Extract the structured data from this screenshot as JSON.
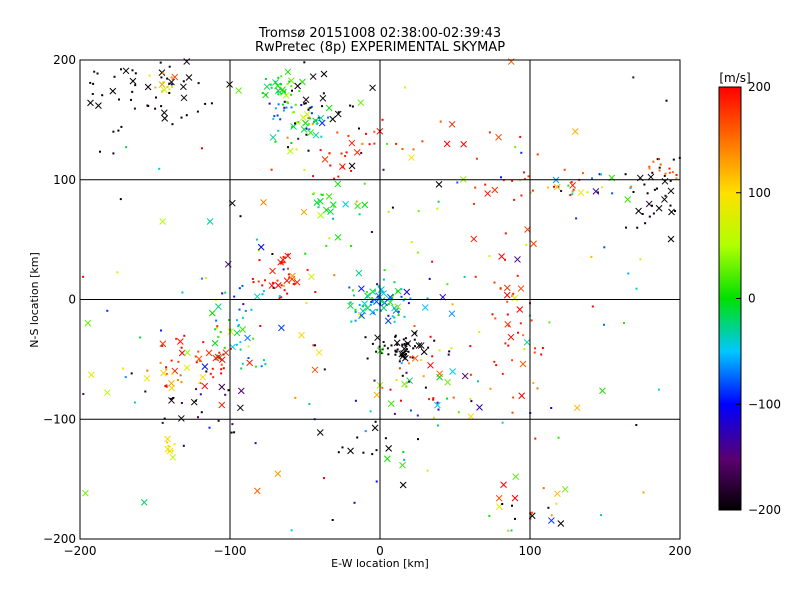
{
  "chart_data": {
    "type": "scatter",
    "title": "Tromsø 20151008 02:38:00-02:39:43",
    "subtitle": "RwPretec (8p) EXPERIMENTAL SKYMAP",
    "xlabel": "E-W location [km]",
    "ylabel": "N-S location [km]",
    "xlim": [
      -200,
      200
    ],
    "ylim": [
      -200,
      200
    ],
    "x_ticks": [
      -200,
      -100,
      0,
      100,
      200
    ],
    "y_ticks": [
      -200,
      -100,
      0,
      100,
      200
    ],
    "x_tick_labels": [
      "−200",
      "−100",
      "0",
      "100",
      "200"
    ],
    "y_tick_labels": [
      "−200",
      "−100",
      "0",
      "100",
      "200"
    ],
    "grid": true,
    "markers": [
      "dot",
      "x"
    ],
    "colorbar": {
      "label": "[m/s]",
      "range": [
        -200,
        200
      ],
      "ticks": [
        200,
        100,
        0,
        -100,
        -200
      ],
      "tick_labels": [
        "200",
        "100",
        "0",
        "−100",
        "−200"
      ],
      "colormap": "rainbow: black (−200) → purple → blue → cyan → green → yellow → orange → red (200)"
    },
    "clusters": [
      {
        "x": -160,
        "y": 175,
        "sx": 22,
        "sy": 18,
        "n": 60,
        "v": -200,
        "vs": 10
      },
      {
        "x": -145,
        "y": 180,
        "sx": 6,
        "sy": 6,
        "n": 12,
        "v": 110,
        "vs": 30
      },
      {
        "x": -65,
        "y": 175,
        "sx": 10,
        "sy": 6,
        "n": 30,
        "v": 5,
        "vs": 15
      },
      {
        "x": -55,
        "y": 150,
        "sx": 12,
        "sy": 10,
        "n": 55,
        "v": -20,
        "vs": 90
      },
      {
        "x": -40,
        "y": 160,
        "sx": 12,
        "sy": 20,
        "n": 25,
        "v": -200,
        "vs": 10
      },
      {
        "x": -25,
        "y": 120,
        "sx": 12,
        "sy": 8,
        "n": 18,
        "v": 190,
        "vs": 10
      },
      {
        "x": 40,
        "y": 130,
        "sx": 50,
        "sy": 12,
        "n": 20,
        "v": 180,
        "vs": 20
      },
      {
        "x": 100,
        "y": 95,
        "sx": 18,
        "sy": 8,
        "n": 18,
        "v": 185,
        "vs": 10
      },
      {
        "x": 150,
        "y": 95,
        "sx": 25,
        "sy": 6,
        "n": 25,
        "v": 10,
        "vs": 100
      },
      {
        "x": 185,
        "y": 90,
        "sx": 12,
        "sy": 20,
        "n": 35,
        "v": -200,
        "vs": 10
      },
      {
        "x": 185,
        "y": 110,
        "sx": 10,
        "sy": 6,
        "n": 15,
        "v": 160,
        "vs": 30
      },
      {
        "x": -30,
        "y": 70,
        "sx": 10,
        "sy": 10,
        "n": 22,
        "v": 0,
        "vs": 25
      },
      {
        "x": -65,
        "y": 20,
        "sx": 10,
        "sy": 12,
        "n": 35,
        "v": 190,
        "vs": 10
      },
      {
        "x": -95,
        "y": -25,
        "sx": 12,
        "sy": 18,
        "n": 45,
        "v": -20,
        "vs": 50
      },
      {
        "x": -120,
        "y": -50,
        "sx": 15,
        "sy": 15,
        "n": 40,
        "v": 190,
        "vs": 15
      },
      {
        "x": -140,
        "y": -65,
        "sx": 8,
        "sy": 6,
        "n": 14,
        "v": 130,
        "vs": 20
      },
      {
        "x": -120,
        "y": -95,
        "sx": 20,
        "sy": 18,
        "n": 25,
        "v": -180,
        "vs": 30
      },
      {
        "x": -140,
        "y": -120,
        "sx": 4,
        "sy": 5,
        "n": 8,
        "v": 100,
        "vs": 5
      },
      {
        "x": 0,
        "y": 0,
        "sx": 12,
        "sy": 10,
        "n": 80,
        "v": -40,
        "vs": 35
      },
      {
        "x": 15,
        "y": -40,
        "sx": 12,
        "sy": 6,
        "n": 55,
        "v": -200,
        "vs": 8
      },
      {
        "x": 30,
        "y": -70,
        "sx": 20,
        "sy": 15,
        "n": 35,
        "v": 40,
        "vs": 150
      },
      {
        "x": 90,
        "y": -40,
        "sx": 15,
        "sy": 25,
        "n": 30,
        "v": 185,
        "vs": 15
      },
      {
        "x": 80,
        "y": 20,
        "sx": 20,
        "sy": 20,
        "n": 16,
        "v": 185,
        "vs": 10
      },
      {
        "x": -10,
        "y": -130,
        "sx": 20,
        "sy": 15,
        "n": 12,
        "v": -200,
        "vs": 10
      },
      {
        "x": 95,
        "y": -170,
        "sx": 10,
        "sy": 10,
        "n": 12,
        "v": 150,
        "vs": 30
      },
      {
        "x": 100,
        "y": -180,
        "sx": 15,
        "sy": 8,
        "n": 6,
        "v": -200,
        "vs": 10
      },
      {
        "x": 0,
        "y": 0,
        "sx": 120,
        "sy": 110,
        "n": 220,
        "v": 0,
        "vs": 130
      }
    ]
  }
}
